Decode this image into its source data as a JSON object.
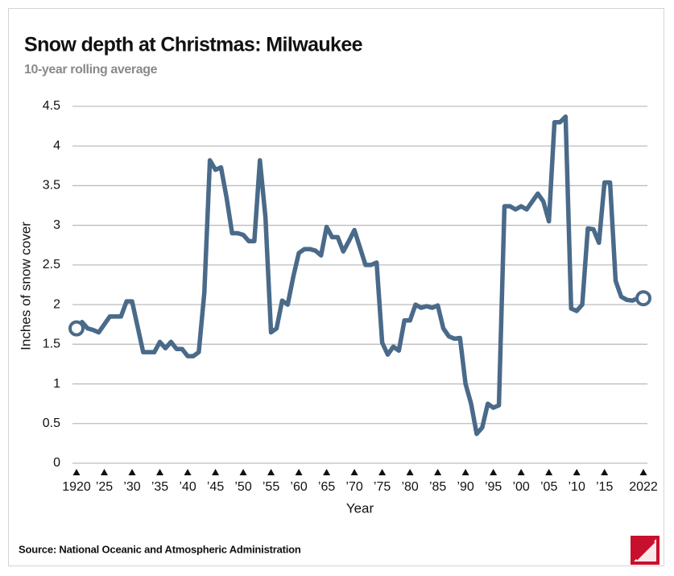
{
  "chart_data": {
    "type": "line",
    "title": "Snow depth at Christmas: Milwaukee",
    "subtitle": "10-year rolling average",
    "x_label": "Year",
    "y_label": "Inches of snow cover",
    "source": "Source: National Oceanic and Atmospheric Administration",
    "color": "#4a6a89",
    "grid": true,
    "x": [
      1920,
      1921,
      1922,
      1923,
      1924,
      1925,
      1926,
      1927,
      1928,
      1929,
      1930,
      1931,
      1932,
      1933,
      1934,
      1935,
      1936,
      1937,
      1938,
      1939,
      1940,
      1941,
      1942,
      1943,
      1944,
      1945,
      1946,
      1947,
      1948,
      1949,
      1950,
      1951,
      1952,
      1953,
      1954,
      1955,
      1956,
      1957,
      1958,
      1959,
      1960,
      1961,
      1962,
      1963,
      1964,
      1965,
      1966,
      1967,
      1968,
      1969,
      1970,
      1971,
      1972,
      1973,
      1974,
      1975,
      1976,
      1977,
      1978,
      1979,
      1980,
      1981,
      1982,
      1983,
      1984,
      1985,
      1986,
      1987,
      1988,
      1989,
      1990,
      1991,
      1992,
      1993,
      1994,
      1995,
      1996,
      1997,
      1998,
      1999,
      2000,
      2001,
      2002,
      2003,
      2004,
      2005,
      2006,
      2007,
      2008,
      2009,
      2010,
      2011,
      2012,
      2013,
      2014,
      2015,
      2016,
      2017,
      2018,
      2019,
      2020,
      2021,
      2022
    ],
    "values": [
      1.7,
      1.78,
      1.7,
      1.68,
      1.65,
      1.75,
      1.85,
      1.85,
      1.85,
      2.04,
      2.04,
      1.72,
      1.4,
      1.4,
      1.4,
      1.53,
      1.45,
      1.53,
      1.44,
      1.44,
      1.35,
      1.35,
      1.4,
      2.15,
      3.82,
      3.7,
      3.73,
      3.35,
      2.9,
      2.9,
      2.88,
      2.8,
      2.8,
      3.82,
      3.1,
      1.65,
      1.7,
      2.05,
      2.0,
      2.35,
      2.65,
      2.7,
      2.7,
      2.68,
      2.62,
      2.98,
      2.85,
      2.85,
      2.67,
      2.8,
      2.94,
      2.72,
      2.5,
      2.5,
      2.53,
      1.52,
      1.37,
      1.47,
      1.42,
      1.8,
      1.8,
      2.0,
      1.96,
      1.98,
      1.96,
      1.99,
      1.7,
      1.6,
      1.57,
      1.58,
      1.0,
      0.75,
      0.37,
      0.45,
      0.75,
      0.7,
      0.73,
      3.24,
      3.24,
      3.2,
      3.24,
      3.2,
      3.3,
      3.4,
      3.3,
      3.05,
      4.3,
      4.3,
      4.37,
      1.95,
      1.92,
      2.0,
      2.96,
      2.95,
      2.78,
      3.54,
      3.54,
      2.3,
      2.1,
      2.06,
      2.05,
      2.08,
      2.08
    ],
    "xlim": [
      1920,
      2022
    ],
    "xticks": [
      1920,
      {
        "value": 1925,
        "label": "’25"
      },
      {
        "value": 1930,
        "label": "’30"
      },
      {
        "value": 1935,
        "label": "’35"
      },
      {
        "value": 1940,
        "label": "’40"
      },
      {
        "value": 1945,
        "label": "’45"
      },
      {
        "value": 1950,
        "label": "’50"
      },
      {
        "value": 1955,
        "label": "’55"
      },
      {
        "value": 1960,
        "label": "’60"
      },
      {
        "value": 1965,
        "label": "’65"
      },
      {
        "value": 1970,
        "label": "’70"
      },
      {
        "value": 1975,
        "label": "’75"
      },
      {
        "value": 1980,
        "label": "’80"
      },
      {
        "value": 1985,
        "label": "’85"
      },
      {
        "value": 1990,
        "label": "’90"
      },
      {
        "value": 1995,
        "label": "’95"
      },
      {
        "value": 2000,
        "label": "’00"
      },
      {
        "value": 2005,
        "label": "’05"
      },
      {
        "value": 2010,
        "label": "’10"
      },
      {
        "value": 2015,
        "label": "’15"
      },
      2022
    ],
    "ylim": [
      0,
      4.5
    ],
    "yticks": [
      0,
      0.5,
      1,
      1.5,
      2,
      2.5,
      3,
      3.5,
      4,
      4.5
    ]
  }
}
